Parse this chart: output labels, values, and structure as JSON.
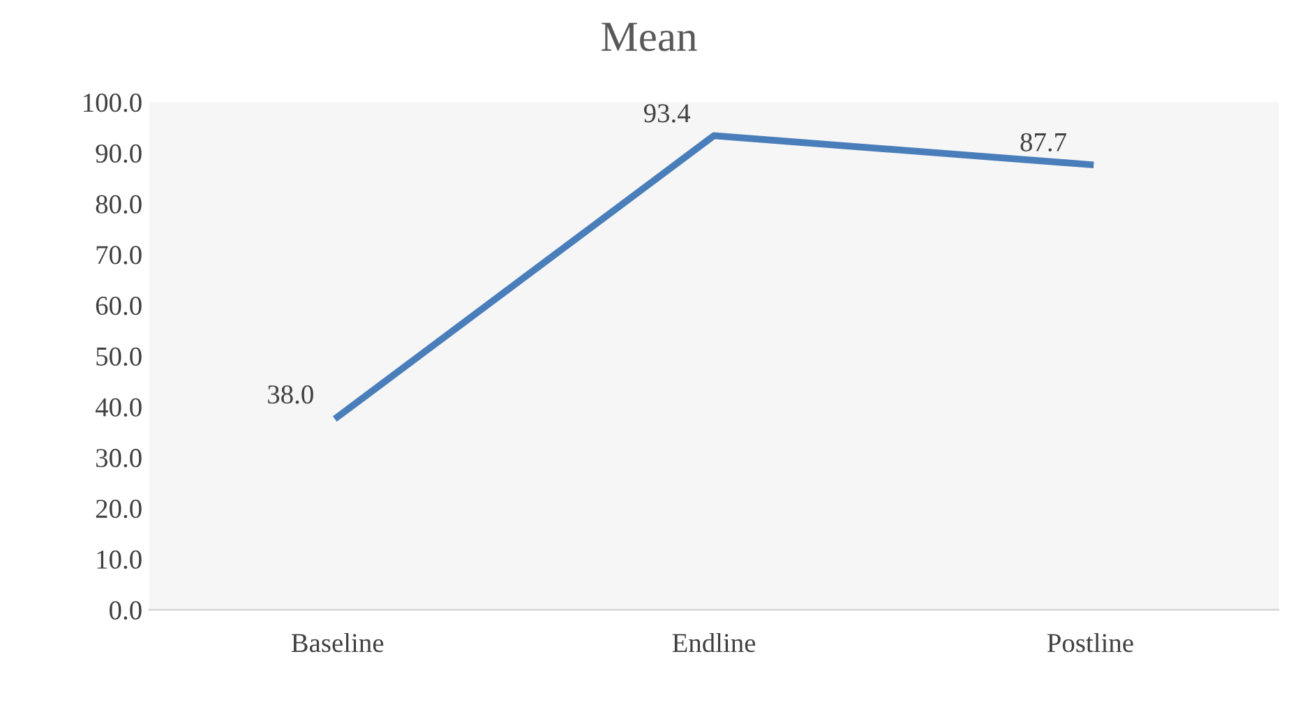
{
  "chart_data": {
    "type": "line",
    "title": "Mean",
    "categories": [
      "Baseline",
      "Endline",
      "Postline"
    ],
    "series": [
      {
        "color": "#4a7ebb",
        "values": [
          38.0,
          93.4,
          87.7
        ],
        "value_labels": [
          "38.0",
          "93.4",
          "87.7"
        ]
      }
    ],
    "ylim": [
      0,
      100
    ],
    "yticks": [
      {
        "value": 0,
        "label": "0.0"
      },
      {
        "value": 10,
        "label": "10.0"
      },
      {
        "value": 20,
        "label": "20.0"
      },
      {
        "value": 30,
        "label": "30.0"
      },
      {
        "value": 40,
        "label": "40.0"
      },
      {
        "value": 50,
        "label": "50.0"
      },
      {
        "value": 60,
        "label": "60.0"
      },
      {
        "value": 70,
        "label": "70.0"
      },
      {
        "value": 80,
        "label": "80.0"
      },
      {
        "value": 90,
        "label": "90.0"
      },
      {
        "value": 100,
        "label": "100.0"
      }
    ],
    "grid": false,
    "marker": "none",
    "line_style": "solid"
  }
}
